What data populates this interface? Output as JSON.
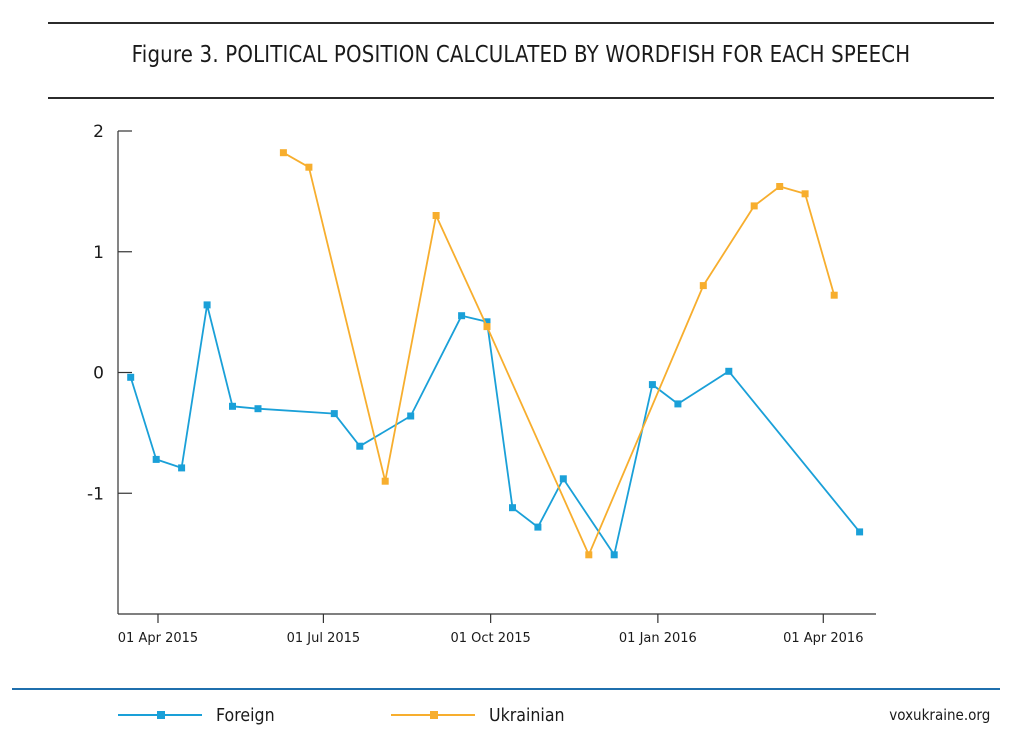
{
  "chart_data": {
    "type": "line",
    "title": "Figure 3. POLITICAL POSITION CALCULATED BY WORDFISH FOR EACH SPEECH",
    "xlabel": "",
    "ylabel": "",
    "x_axis_type": "date",
    "xlim": [
      "2015-03-10",
      "2016-04-30"
    ],
    "ylim": [
      -2,
      2
    ],
    "y_ticks": [
      {
        "value": 2,
        "label": "2"
      },
      {
        "value": 1,
        "label": "1"
      },
      {
        "value": 0,
        "label": "0"
      },
      {
        "value": -1,
        "label": "-1"
      }
    ],
    "x_ticks": [
      {
        "value": "2015-04-01",
        "label": "01 Apr 2015"
      },
      {
        "value": "2015-07-01",
        "label": "01 Jul 2015"
      },
      {
        "value": "2015-10-01",
        "label": "01 Oct 2015"
      },
      {
        "value": "2016-01-01",
        "label": "01 Jan 2016"
      },
      {
        "value": "2016-04-01",
        "label": "01 Apr 2016"
      }
    ],
    "grid": false,
    "legend_position": "bottom",
    "series": [
      {
        "name": "Foreign",
        "color": "#1aa0d8",
        "marker": "square",
        "points": [
          {
            "x": "2015-03-17",
            "y": -0.04
          },
          {
            "x": "2015-03-31",
            "y": -0.72
          },
          {
            "x": "2015-04-14",
            "y": -0.79
          },
          {
            "x": "2015-04-28",
            "y": 0.56
          },
          {
            "x": "2015-05-12",
            "y": -0.28
          },
          {
            "x": "2015-05-26",
            "y": -0.3
          },
          {
            "x": "2015-07-07",
            "y": -0.34
          },
          {
            "x": "2015-07-21",
            "y": -0.61
          },
          {
            "x": "2015-08-18",
            "y": -0.36
          },
          {
            "x": "2015-09-15",
            "y": 0.47
          },
          {
            "x": "2015-09-29",
            "y": 0.42
          },
          {
            "x": "2015-10-13",
            "y": -1.12
          },
          {
            "x": "2015-10-27",
            "y": -1.28
          },
          {
            "x": "2015-11-10",
            "y": -0.88
          },
          {
            "x": "2015-12-08",
            "y": -1.51
          },
          {
            "x": "2015-12-29",
            "y": -0.1
          },
          {
            "x": "2016-01-12",
            "y": -0.26
          },
          {
            "x": "2016-02-09",
            "y": 0.01
          },
          {
            "x": "2016-04-21",
            "y": -1.32
          }
        ]
      },
      {
        "name": "Ukrainian",
        "color": "#f7ae2e",
        "marker": "square",
        "points": [
          {
            "x": "2015-06-09",
            "y": 1.82
          },
          {
            "x": "2015-06-23",
            "y": 1.7
          },
          {
            "x": "2015-08-04",
            "y": -0.9
          },
          {
            "x": "2015-09-01",
            "y": 1.3
          },
          {
            "x": "2015-09-29",
            "y": 0.38
          },
          {
            "x": "2015-11-24",
            "y": -1.51
          },
          {
            "x": "2016-01-26",
            "y": 0.72
          },
          {
            "x": "2016-02-23",
            "y": 1.38
          },
          {
            "x": "2016-03-08",
            "y": 1.54
          },
          {
            "x": "2016-03-22",
            "y": 1.48
          },
          {
            "x": "2016-04-07",
            "y": 0.64
          }
        ]
      }
    ]
  },
  "legend": {
    "foreign_label": "Foreign",
    "ukrainian_label": "Ukrainian"
  },
  "footer": {
    "source": "voxukraine.org"
  }
}
